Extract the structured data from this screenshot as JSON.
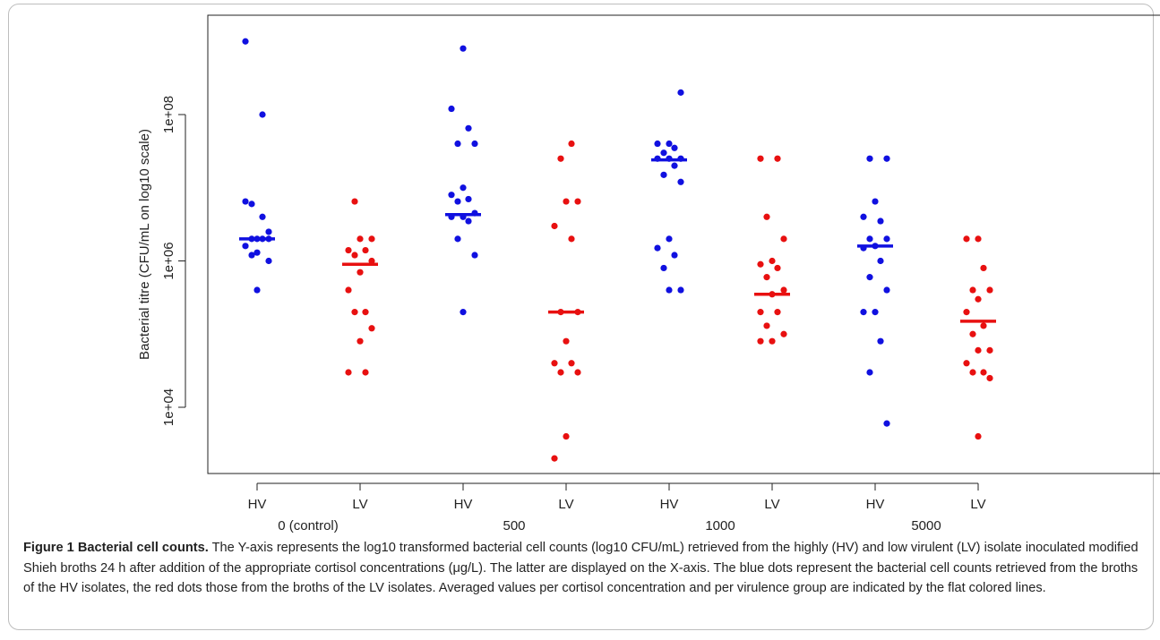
{
  "chart_data": {
    "type": "scatter",
    "ylabel": "Bacterial titre (CFU/mL on log10 scale)",
    "y_scale": "log10",
    "ylim": [
      1000,
      3000000000
    ],
    "y_ticks": [
      {
        "value": 10000,
        "label": "1e+04"
      },
      {
        "value": 1000000,
        "label": "1e+06"
      },
      {
        "value": 100000000,
        "label": "1e+08"
      }
    ],
    "groups": [
      {
        "concentration": "0 (control)",
        "group": "HV",
        "color": "#1010e0",
        "values": [
          1000000000,
          100000000,
          6000000,
          2500000,
          1300000,
          6500000,
          4000000,
          2000000,
          2000000,
          2000000,
          1600000,
          2000000,
          1200000,
          1000000,
          400000
        ],
        "mean": 2000000
      },
      {
        "concentration": "0 (control)",
        "group": "LV",
        "color": "#e81010",
        "values": [
          6500000,
          2000000,
          2000000,
          1400000,
          1400000,
          1200000,
          1000000,
          700000,
          400000,
          200000,
          200000,
          120000,
          80000,
          30000,
          30000
        ],
        "mean": 900000
      },
      {
        "concentration": "500",
        "group": "HV",
        "color": "#1010e0",
        "values": [
          800000000,
          120000000,
          65000000,
          40000000,
          40000000,
          10000000,
          8000000,
          7000000,
          6500000,
          4500000,
          4000000,
          4000000,
          3500000,
          2000000,
          1200000,
          200000
        ],
        "mean": 4300000
      },
      {
        "concentration": "500",
        "group": "LV",
        "color": "#e81010",
        "values": [
          40000000,
          25000000,
          6500000,
          6500000,
          3000000,
          2000000,
          200000,
          200000,
          80000,
          40000,
          40000,
          30000,
          30000,
          4000,
          2000
        ],
        "mean": 200000
      },
      {
        "concentration": "1000",
        "group": "HV",
        "color": "#1010e0",
        "values": [
          200000000,
          40000000,
          40000000,
          35000000,
          30000000,
          25000000,
          25000000,
          25000000,
          20000000,
          15000000,
          12000000,
          2000000,
          1500000,
          1200000,
          800000,
          400000,
          400000
        ],
        "mean": 24000000
      },
      {
        "concentration": "1000",
        "group": "LV",
        "color": "#e81010",
        "values": [
          25000000,
          25000000,
          4000000,
          2000000,
          1000000,
          900000,
          800000,
          600000,
          400000,
          350000,
          200000,
          200000,
          130000,
          100000,
          80000,
          80000
        ],
        "mean": 350000
      },
      {
        "concentration": "5000",
        "group": "HV",
        "color": "#1010e0",
        "values": [
          25000000,
          25000000,
          6500000,
          4000000,
          3500000,
          2000000,
          2000000,
          1600000,
          1500000,
          1000000,
          600000,
          400000,
          200000,
          200000,
          80000,
          30000,
          6000
        ],
        "mean": 1600000
      },
      {
        "concentration": "5000",
        "group": "LV",
        "color": "#e81010",
        "values": [
          2000000,
          2000000,
          800000,
          400000,
          400000,
          300000,
          200000,
          130000,
          100000,
          60000,
          60000,
          40000,
          30000,
          30000,
          25000,
          4000
        ],
        "mean": 150000
      }
    ],
    "x_tick_labels": [
      "HV",
      "LV",
      "HV",
      "LV",
      "HV",
      "LV",
      "HV",
      "LV"
    ],
    "x_group_labels": [
      "0 (control)",
      "500",
      "1000",
      "5000"
    ]
  },
  "caption": {
    "title": "Figure 1  Bacterial cell counts.",
    "text": "The Y-axis represents the log10 transformed bacterial cell counts (log10 CFU/mL) retrieved from the highly (HV) and low virulent (LV) isolate inoculated modified Shieh broths 24 h after addition of the appropriate cortisol concentrations (μg/L). The latter are displayed on the X-axis. The blue dots represent the bacterial cell counts retrieved from the broths of the HV isolates, the red dots those from the broths of the LV isolates. Averaged values per cortisol concentration and per virulence group are indicated by the flat colored lines."
  }
}
